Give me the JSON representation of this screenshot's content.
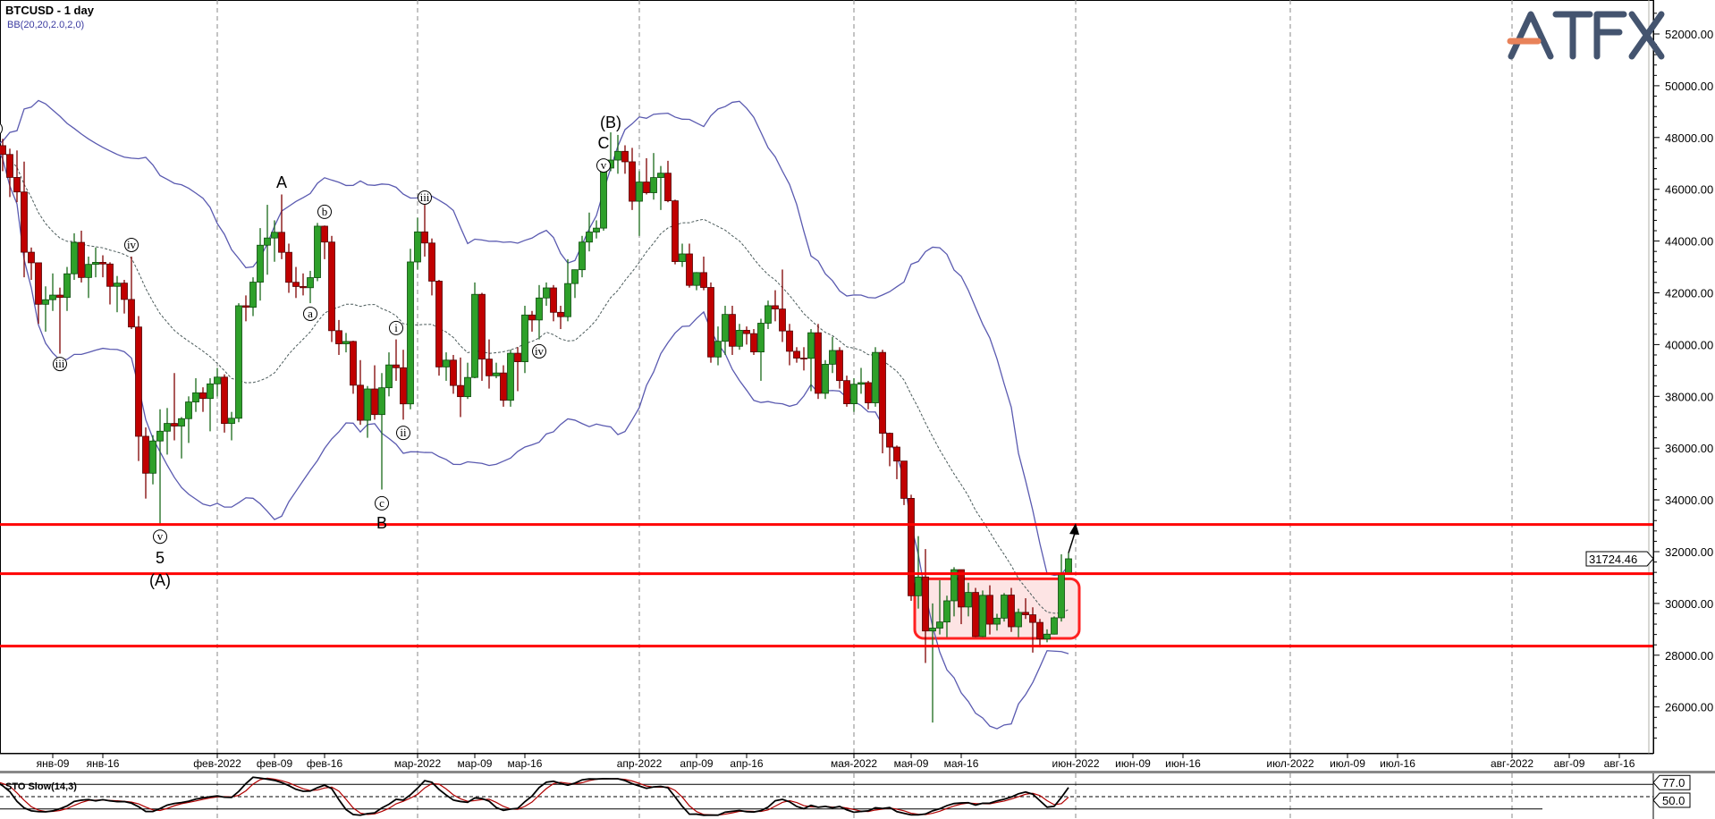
{
  "header": {
    "symbol_title": "BTCUSD - 1 day",
    "indicator_label": "BB(20,20,2.0,2,0)"
  },
  "logo": {
    "text": "ATFX",
    "color": "#44546f",
    "accent": "#e8825a"
  },
  "indicator_panel": {
    "title": "STO Slow(14,3)",
    "value_k": "77.0",
    "value_level": "50.0",
    "levels": [
      80,
      50,
      20
    ]
  },
  "colors": {
    "up": "#2ea02a",
    "down": "#c00000",
    "bands": "#5a5ab0",
    "middle": "#4a5a5a",
    "levels": "#ff0000",
    "zone_fill": "#fde4e4",
    "stoch_k": "#000000",
    "stoch_d": "#b00000"
  },
  "chart_data": {
    "type": "candlestick",
    "title": "BTCUSD - 1 day",
    "first_date": "2022-01-01",
    "ylim": [
      24400,
      53000
    ],
    "xlim": [
      "2022-01-01",
      "2022-08-21"
    ],
    "grid": "vertical dashed at month starts",
    "last_price": "31724.46",
    "y_ticks": [
      "26000.00",
      "28000.00",
      "30000.00",
      "32000.00",
      "34000.00",
      "36000.00",
      "38000.00",
      "40000.00",
      "42000.00",
      "44000.00",
      "46000.00",
      "48000.00",
      "50000.00",
      "52000.00"
    ],
    "x_ticks": [
      {
        "date": "2022-01-09",
        "label": "янв-09"
      },
      {
        "date": "2022-01-16",
        "label": "янв-16"
      },
      {
        "date": "2022-02-01",
        "label": "фев-2022",
        "major": true
      },
      {
        "date": "2022-02-09",
        "label": "фев-09"
      },
      {
        "date": "2022-02-16",
        "label": "фев-16"
      },
      {
        "date": "2022-03-01",
        "label": "мар-2022",
        "major": true
      },
      {
        "date": "2022-03-09",
        "label": "мар-09"
      },
      {
        "date": "2022-03-16",
        "label": "мар-16"
      },
      {
        "date": "2022-04-01",
        "label": "апр-2022",
        "major": true
      },
      {
        "date": "2022-04-09",
        "label": "апр-09"
      },
      {
        "date": "2022-04-16",
        "label": "апр-16"
      },
      {
        "date": "2022-05-01",
        "label": "мая-2022",
        "major": true
      },
      {
        "date": "2022-05-09",
        "label": "мая-09"
      },
      {
        "date": "2022-05-16",
        "label": "мая-16"
      },
      {
        "date": "2022-06-01",
        "label": "июн-2022",
        "major": true
      },
      {
        "date": "2022-06-09",
        "label": "июн-09"
      },
      {
        "date": "2022-06-16",
        "label": "июн-16"
      },
      {
        "date": "2022-07-01",
        "label": "июл-2022",
        "major": true
      },
      {
        "date": "2022-07-09",
        "label": "июл-09"
      },
      {
        "date": "2022-07-16",
        "label": "июл-16"
      },
      {
        "date": "2022-08-01",
        "label": "авг-2022",
        "major": true
      },
      {
        "date": "2022-08-09",
        "label": "авг-09"
      },
      {
        "date": "2022-08-16",
        "label": "авг-16"
      }
    ],
    "ohlc": [
      [
        46200,
        47900,
        46200,
        47686
      ],
      [
        47686,
        47950,
        46700,
        47345
      ],
      [
        47345,
        47570,
        45700,
        46458
      ],
      [
        46458,
        47500,
        45500,
        45897
      ],
      [
        45897,
        47070,
        42600,
        43569
      ],
      [
        43569,
        43750,
        42500,
        43160
      ],
      [
        43160,
        43150,
        40800,
        41557
      ],
      [
        41557,
        42250,
        40500,
        41734
      ],
      [
        41734,
        42750,
        41300,
        41912
      ],
      [
        41912,
        42200,
        39650,
        41821
      ],
      [
        41821,
        43000,
        41300,
        42735
      ],
      [
        42735,
        44300,
        42500,
        43949
      ],
      [
        43949,
        44400,
        42400,
        42592
      ],
      [
        42592,
        43400,
        41800,
        43099
      ],
      [
        43099,
        43750,
        42600,
        43177
      ],
      [
        43177,
        43450,
        42600,
        43113
      ],
      [
        43113,
        43180,
        41550,
        42250
      ],
      [
        42250,
        42650,
        41250,
        42375
      ],
      [
        42375,
        42500,
        41200,
        41744
      ],
      [
        41744,
        43400,
        40600,
        40680
      ],
      [
        40680,
        41100,
        35500,
        36457
      ],
      [
        36457,
        36800,
        34050,
        35030
      ],
      [
        35030,
        36500,
        34600,
        36276
      ],
      [
        36276,
        37500,
        33000,
        36654
      ],
      [
        36654,
        37550,
        35750,
        36954
      ],
      [
        36954,
        38900,
        36300,
        36852
      ],
      [
        36852,
        37200,
        35600,
        37138
      ],
      [
        37138,
        38000,
        36200,
        37784
      ],
      [
        37784,
        38700,
        37400,
        38138
      ],
      [
        38138,
        38350,
        37400,
        37917
      ],
      [
        37917,
        38700,
        36650,
        38483
      ],
      [
        38483,
        39100,
        38000,
        38743
      ],
      [
        38743,
        38850,
        36600,
        36952
      ],
      [
        36952,
        37400,
        36300,
        37154
      ],
      [
        37154,
        41600,
        37000,
        41500
      ],
      [
        41500,
        41900,
        40900,
        41441
      ],
      [
        41441,
        42600,
        41100,
        42412
      ],
      [
        42412,
        44500,
        41700,
        43840
      ],
      [
        43840,
        45400,
        42700,
        44118
      ],
      [
        44118,
        44800,
        43200,
        44338
      ],
      [
        44338,
        45800,
        43300,
        43565
      ],
      [
        43565,
        43900,
        42000,
        42407
      ],
      [
        42407,
        43000,
        41800,
        42244
      ],
      [
        42244,
        42750,
        41900,
        42197
      ],
      [
        42197,
        42850,
        41600,
        42586
      ],
      [
        42586,
        44700,
        42450,
        44575
      ],
      [
        44575,
        44600,
        43300,
        43961
      ],
      [
        43961,
        44200,
        40100,
        40538
      ],
      [
        40538,
        40950,
        39600,
        40030
      ],
      [
        40030,
        40450,
        39700,
        40122
      ],
      [
        40122,
        40150,
        38100,
        38431
      ],
      [
        38431,
        39400,
        36900,
        37075
      ],
      [
        37075,
        38400,
        36400,
        38286
      ],
      [
        38286,
        39200,
        37100,
        37296
      ],
      [
        37296,
        38900,
        34400,
        38332
      ],
      [
        38332,
        39700,
        38000,
        39214
      ],
      [
        39214,
        40200,
        38600,
        39105
      ],
      [
        39105,
        39800,
        37100,
        37709
      ],
      [
        37709,
        43700,
        37500,
        43193
      ],
      [
        43193,
        44900,
        42900,
        44354
      ],
      [
        44354,
        45400,
        43400,
        43924
      ],
      [
        43924,
        44100,
        41900,
        42451
      ],
      [
        42451,
        42500,
        38800,
        39137
      ],
      [
        39137,
        39700,
        38600,
        39400
      ],
      [
        39400,
        39600,
        38100,
        38420
      ],
      [
        38420,
        39500,
        37200,
        37988
      ],
      [
        37988,
        39300,
        37900,
        38730
      ],
      [
        38730,
        42400,
        38700,
        41941
      ],
      [
        41941,
        42000,
        38600,
        39439
      ],
      [
        39439,
        40200,
        38300,
        38794
      ],
      [
        38794,
        39300,
        38700,
        38904
      ],
      [
        38904,
        39200,
        37600,
        37849
      ],
      [
        37849,
        39800,
        37600,
        39666
      ],
      [
        39666,
        39900,
        38200,
        39338
      ],
      [
        39338,
        41500,
        38900,
        41143
      ],
      [
        41143,
        41300,
        40500,
        40951
      ],
      [
        40951,
        42300,
        40200,
        41801
      ],
      [
        41801,
        42400,
        41500,
        42190
      ],
      [
        42190,
        42300,
        40900,
        41247
      ],
      [
        41247,
        41500,
        40600,
        41077
      ],
      [
        41077,
        43300,
        40900,
        42358
      ],
      [
        42358,
        42900,
        41800,
        42892
      ],
      [
        42892,
        44200,
        42600,
        43960
      ],
      [
        43960,
        45100,
        43600,
        44348
      ],
      [
        44348,
        44800,
        44100,
        44500
      ],
      [
        44500,
        46900,
        44400,
        46820
      ],
      [
        46820,
        48200,
        46700,
        47128
      ],
      [
        47128,
        48100,
        46600,
        47465
      ],
      [
        47465,
        47700,
        46600,
        47062
      ],
      [
        47062,
        47600,
        45200,
        45538
      ],
      [
        45538,
        46700,
        44200,
        46281
      ],
      [
        46281,
        47200,
        45800,
        45868
      ],
      [
        45868,
        47400,
        45600,
        46453
      ],
      [
        46453,
        46900,
        45200,
        46622
      ],
      [
        46622,
        47100,
        45500,
        45555
      ],
      [
        45555,
        45600,
        43100,
        43207
      ],
      [
        43207,
        43900,
        43000,
        43503
      ],
      [
        43503,
        43900,
        42200,
        42287
      ],
      [
        42287,
        42800,
        42100,
        42782
      ],
      [
        42782,
        43400,
        42100,
        42207
      ],
      [
        42207,
        42400,
        39300,
        39521
      ],
      [
        39521,
        40700,
        39200,
        40127
      ],
      [
        40127,
        41500,
        39600,
        41166
      ],
      [
        41166,
        41500,
        39600,
        39935
      ],
      [
        39935,
        40800,
        39800,
        40553
      ],
      [
        40553,
        40700,
        40000,
        40424
      ],
      [
        40424,
        40600,
        39600,
        39716
      ],
      [
        39716,
        41000,
        38600,
        40826
      ],
      [
        40826,
        41700,
        40600,
        41502
      ],
      [
        41502,
        42100,
        40900,
        41374
      ],
      [
        41374,
        42900,
        40100,
        40527
      ],
      [
        40527,
        40800,
        39200,
        39741
      ],
      [
        39741,
        39900,
        39300,
        39478
      ],
      [
        39478,
        39900,
        39000,
        39469
      ],
      [
        39469,
        40600,
        38200,
        40458
      ],
      [
        40458,
        40800,
        37900,
        38117
      ],
      [
        38117,
        39400,
        37900,
        39241
      ],
      [
        39241,
        40300,
        38900,
        39773
      ],
      [
        39773,
        39900,
        38300,
        38609
      ],
      [
        38609,
        38800,
        37600,
        37714
      ],
      [
        37714,
        38700,
        37400,
        38469
      ],
      [
        38469,
        39100,
        38100,
        38529
      ],
      [
        38529,
        38600,
        37500,
        37750
      ],
      [
        37750,
        39900,
        37600,
        39698
      ],
      [
        39698,
        39800,
        35800,
        36575
      ],
      [
        36575,
        36600,
        35300,
        36040
      ],
      [
        36040,
        36100,
        34800,
        35501
      ],
      [
        35501,
        35500,
        33800,
        34059
      ],
      [
        34059,
        34200,
        30100,
        30296
      ],
      [
        30296,
        32600,
        29800,
        31022
      ],
      [
        31022,
        32100,
        27700,
        28936
      ],
      [
        28936,
        30000,
        25400,
        29047
      ],
      [
        29047,
        30900,
        28800,
        29283
      ],
      [
        29283,
        30300,
        28700,
        30101
      ],
      [
        30101,
        31400,
        29500,
        31305
      ],
      [
        31305,
        31300,
        29200,
        29862
      ],
      [
        29862,
        30800,
        29500,
        30425
      ],
      [
        30425,
        30600,
        28700,
        28720
      ],
      [
        28720,
        30500,
        28700,
        30314
      ],
      [
        30314,
        30700,
        28800,
        29200
      ],
      [
        29200,
        29600,
        28950,
        29432
      ],
      [
        29432,
        30400,
        29300,
        30323
      ],
      [
        30323,
        30600,
        28900,
        29098
      ],
      [
        29098,
        29800,
        28700,
        29655
      ],
      [
        29655,
        30200,
        29400,
        29562
      ],
      [
        29562,
        29850,
        28100,
        29267
      ],
      [
        29267,
        29400,
        28300,
        28627
      ],
      [
        28627,
        29000,
        28500,
        28814
      ],
      [
        28814,
        29500,
        28800,
        29445
      ],
      [
        29445,
        31900,
        29300,
        31150
      ],
      [
        31150,
        31950,
        31100,
        31724.46
      ]
    ],
    "bollinger": {
      "period": 20,
      "deviations": 2.0
    },
    "horizontal_levels": [
      33050,
      31150,
      28350
    ],
    "consolidation_zone": {
      "from": "2022-05-10",
      "to": "2022-06-02",
      "low": 28650,
      "high": 30950
    },
    "arrow": {
      "from": {
        "date": "2022-05-31",
        "price": 31950
      },
      "to": {
        "date": "2022-06-01",
        "price": 33100
      }
    },
    "wave_labels": [
      {
        "text": "i",
        "date": "2022-01-01",
        "price": 48340,
        "circled": true
      },
      {
        "text": "iii",
        "date": "2022-01-10",
        "price": 39250,
        "circled": true
      },
      {
        "text": "iv",
        "date": "2022-01-20",
        "price": 43850,
        "circled": true
      },
      {
        "text": "v",
        "date": "2022-01-24",
        "price": 32580,
        "circled": true
      },
      {
        "text": "5",
        "date": "2022-01-24",
        "price": 31750
      },
      {
        "text": "(A)",
        "date": "2022-01-24",
        "price": 30900
      },
      {
        "text": "A",
        "date": "2022-02-10",
        "price": 46270
      },
      {
        "text": "a",
        "date": "2022-02-14",
        "price": 41190,
        "circled": true
      },
      {
        "text": "b",
        "date": "2022-02-16",
        "price": 45130,
        "circled": true
      },
      {
        "text": "c",
        "date": "2022-02-24",
        "price": 33870,
        "circled": true
      },
      {
        "text": "B",
        "date": "2022-02-24",
        "price": 33100
      },
      {
        "text": "i",
        "date": "2022-02-26",
        "price": 40640,
        "circled": true
      },
      {
        "text": "ii",
        "date": "2022-02-27",
        "price": 36590,
        "circled": true
      },
      {
        "text": "iii",
        "date": "2022-03-02",
        "price": 45680,
        "circled": true
      },
      {
        "text": "iv",
        "date": "2022-03-18",
        "price": 39740,
        "circled": true
      },
      {
        "text": "v",
        "date": "2022-03-27",
        "price": 46920,
        "circled": true
      },
      {
        "text": "C",
        "date": "2022-03-27",
        "price": 47780
      },
      {
        "text": "(B)",
        "date": "2022-03-28",
        "price": 48580
      }
    ],
    "stochastic": {
      "k_period": 14,
      "smoothing": 3,
      "ylim": [
        0,
        100
      ]
    }
  }
}
